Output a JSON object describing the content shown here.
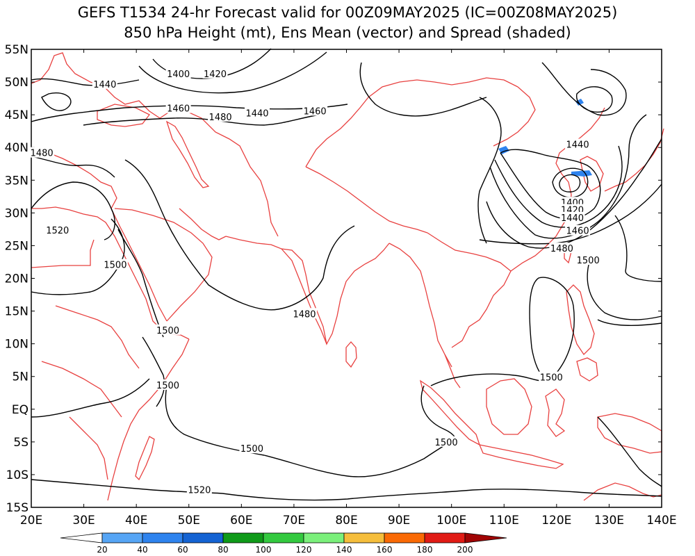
{
  "title_line1": "GEFS T1534 24-hr Forecast valid for 00Z09MAY2025 (IC=00Z08MAY2025)",
  "title_line2": "850 hPa Height (mt), Ens Mean (vector) and Spread (shaded)",
  "map": {
    "lon_range": [
      20,
      140
    ],
    "lat_range": [
      -15,
      55
    ],
    "lon_ticks": [
      {
        "value": 20,
        "label": "20E"
      },
      {
        "value": 30,
        "label": "30E"
      },
      {
        "value": 40,
        "label": "40E"
      },
      {
        "value": 50,
        "label": "50E"
      },
      {
        "value": 60,
        "label": "60E"
      },
      {
        "value": 70,
        "label": "70E"
      },
      {
        "value": 80,
        "label": "80E"
      },
      {
        "value": 90,
        "label": "90E"
      },
      {
        "value": 100,
        "label": "100E"
      },
      {
        "value": 110,
        "label": "110E"
      },
      {
        "value": 120,
        "label": "120E"
      },
      {
        "value": 130,
        "label": "130E"
      },
      {
        "value": 140,
        "label": "140E"
      }
    ],
    "lat_ticks": [
      {
        "value": 55,
        "label": "55N"
      },
      {
        "value": 50,
        "label": "50N"
      },
      {
        "value": 45,
        "label": "45N"
      },
      {
        "value": 40,
        "label": "40N"
      },
      {
        "value": 35,
        "label": "35N"
      },
      {
        "value": 30,
        "label": "30N"
      },
      {
        "value": 25,
        "label": "25N"
      },
      {
        "value": 20,
        "label": "20N"
      },
      {
        "value": 15,
        "label": "15N"
      },
      {
        "value": 10,
        "label": "10N"
      },
      {
        "value": 5,
        "label": "5N"
      },
      {
        "value": 0,
        "label": "EQ"
      },
      {
        "value": -5,
        "label": "5S"
      },
      {
        "value": -10,
        "label": "10S"
      },
      {
        "value": -15,
        "label": "15S"
      }
    ],
    "contour_color": "#000000",
    "coastline_color": "#e8403f",
    "contour_labels": [
      {
        "lon": 34,
        "lat": 49.6,
        "text": "1440"
      },
      {
        "lon": 48,
        "lat": 51.2,
        "text": "1400"
      },
      {
        "lon": 55,
        "lat": 51.2,
        "text": "1420"
      },
      {
        "lon": 48,
        "lat": 45.9,
        "text": "1460"
      },
      {
        "lon": 56,
        "lat": 44.6,
        "text": "1480"
      },
      {
        "lon": 63,
        "lat": 45.2,
        "text": "1440"
      },
      {
        "lon": 74,
        "lat": 45.5,
        "text": "1460"
      },
      {
        "lon": 22,
        "lat": 39.1,
        "text": "1480"
      },
      {
        "lon": 25,
        "lat": 27.3,
        "text": "1520"
      },
      {
        "lon": 36,
        "lat": 22.0,
        "text": "1500"
      },
      {
        "lon": 72,
        "lat": 14.5,
        "text": "1480"
      },
      {
        "lon": 46,
        "lat": 12.0,
        "text": "1500"
      },
      {
        "lon": 46,
        "lat": 3.6,
        "text": "1500"
      },
      {
        "lon": 62,
        "lat": -6.1,
        "text": "1500"
      },
      {
        "lon": 52,
        "lat": -12.4,
        "text": "1520"
      },
      {
        "lon": 99,
        "lat": -5.1,
        "text": "1500"
      },
      {
        "lon": 119,
        "lat": 4.8,
        "text": "1500"
      },
      {
        "lon": 124,
        "lat": 40.4,
        "text": "1440"
      },
      {
        "lon": 123,
        "lat": 31.5,
        "text": "1400"
      },
      {
        "lon": 123,
        "lat": 30.4,
        "text": "1420"
      },
      {
        "lon": 123,
        "lat": 29.2,
        "text": "1440"
      },
      {
        "lon": 124,
        "lat": 27.2,
        "text": "1460"
      },
      {
        "lon": 121,
        "lat": 24.5,
        "text": "1480"
      },
      {
        "lon": 126,
        "lat": 22.7,
        "text": "1500"
      }
    ]
  },
  "colorbar": {
    "labels": [
      "20",
      "40",
      "60",
      "80",
      "100",
      "120",
      "140",
      "160",
      "180",
      "200"
    ],
    "colors": [
      "#ffffff",
      "#56a5f5",
      "#2e83ee",
      "#1463d3",
      "#0f9a19",
      "#33c93f",
      "#7bf07b",
      "#f5be3c",
      "#fa6a05",
      "#e11b15",
      "#a10404"
    ]
  }
}
